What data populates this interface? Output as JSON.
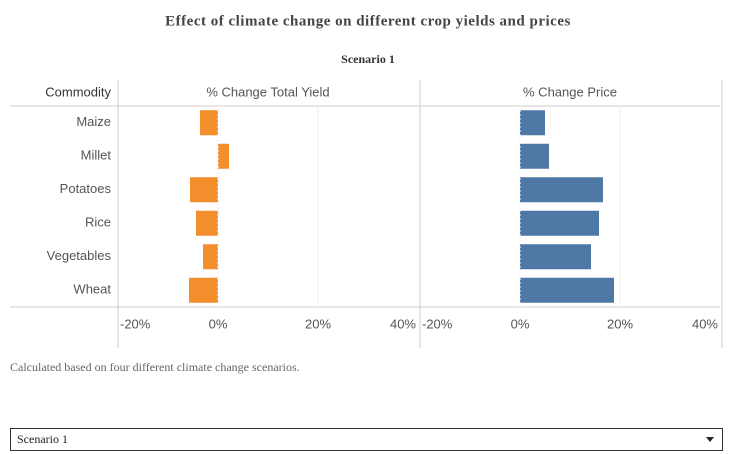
{
  "title": "Effect of climate change on different crop yields and prices",
  "subtitle": "Scenario 1",
  "row_header": "Commodity",
  "footnote": "Calculated based on four different climate change scenarios.",
  "dropdown": {
    "selected": "Scenario 1"
  },
  "chart_data": [
    {
      "type": "bar",
      "orientation": "horizontal",
      "title": "% Change Total Yield",
      "categories": [
        "Maize",
        "Millet",
        "Potatoes",
        "Rice",
        "Vegetables",
        "Wheat"
      ],
      "values": [
        -3.6,
        2.2,
        -5.6,
        -4.4,
        -3.0,
        -5.8
      ],
      "color": "#f28e2b",
      "xlim": [
        -20,
        40
      ],
      "xticks": [
        {
          "value": -20,
          "label": "-20%"
        },
        {
          "value": 0,
          "label": "0%"
        },
        {
          "value": 20,
          "label": "20%"
        },
        {
          "value": 40,
          "label": "40%"
        }
      ],
      "grid": true
    },
    {
      "type": "bar",
      "orientation": "horizontal",
      "title": "% Change Price",
      "categories": [
        "Maize",
        "Millet",
        "Potatoes",
        "Rice",
        "Vegetables",
        "Wheat"
      ],
      "values": [
        5.0,
        5.8,
        16.6,
        15.8,
        14.2,
        18.8
      ],
      "color": "#4e79a7",
      "xlim": [
        -20,
        40
      ],
      "xticks": [
        {
          "value": -20,
          "label": "-20%"
        },
        {
          "value": 0,
          "label": "0%"
        },
        {
          "value": 20,
          "label": "20%"
        },
        {
          "value": 40,
          "label": "40%"
        }
      ],
      "grid": true
    }
  ]
}
